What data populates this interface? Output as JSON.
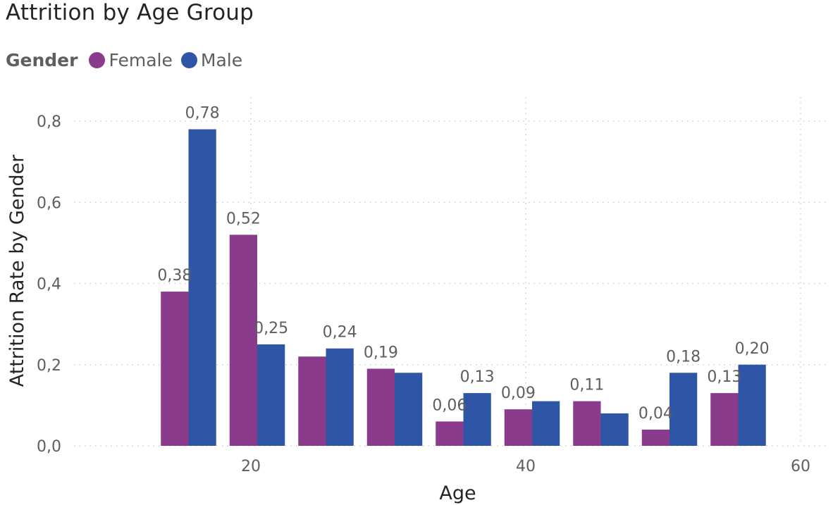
{
  "colors": {
    "female": "#8A3B8C",
    "male": "#2F56A6",
    "grid": "#C8C6C4"
  },
  "chart_data": {
    "type": "bar",
    "title": "Attrition by Age Group",
    "legend_title": "Gender",
    "legend_placement": "top-left",
    "xlabel": "Age",
    "ylabel": "Attrition Rate by Gender",
    "xlim": [
      10,
      60
    ],
    "ylim": [
      0,
      0.8
    ],
    "x_ticks": [
      {
        "value": 20,
        "label": "20"
      },
      {
        "value": 40,
        "label": "40"
      },
      {
        "value": 60,
        "label": "60"
      }
    ],
    "y_ticks": [
      {
        "value": 0.0,
        "label": "0,0"
      },
      {
        "value": 0.2,
        "label": "0,2"
      },
      {
        "value": 0.4,
        "label": "0,4"
      },
      {
        "value": 0.6,
        "label": "0,6"
      },
      {
        "value": 0.8,
        "label": "0,8"
      }
    ],
    "bin_width": 5,
    "x": [
      15,
      20,
      25,
      30,
      35,
      40,
      45,
      50,
      55
    ],
    "series": [
      {
        "name": "Female",
        "values": [
          0.38,
          0.52,
          0.22,
          0.19,
          0.06,
          0.09,
          0.11,
          0.04,
          0.13
        ],
        "data_labels": [
          "0,38",
          "0,52",
          "",
          "0,19",
          "0,06",
          "0,09",
          "0,11",
          "0,04",
          "0,13"
        ]
      },
      {
        "name": "Male",
        "values": [
          0.78,
          0.25,
          0.24,
          0.18,
          0.13,
          0.11,
          0.08,
          0.18,
          0.2
        ],
        "data_labels": [
          "0,78",
          "0,25",
          "0,24",
          "",
          "0,13",
          "",
          "",
          "0,18",
          "0,20"
        ]
      }
    ],
    "grid": true
  }
}
